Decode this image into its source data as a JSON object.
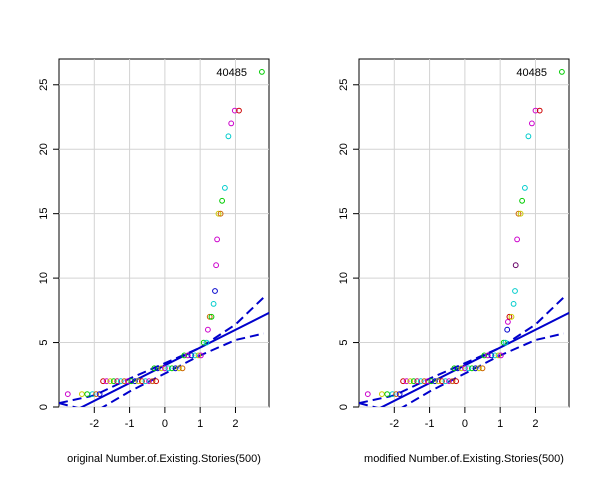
{
  "chart_data": [
    {
      "type": "scatter",
      "subtype": "qq-plot",
      "xlabel": "original Number.of.Existing.Stories(500)",
      "ylabel": "",
      "xlim": [
        -3.0,
        2.95
      ],
      "ylim": [
        0,
        27
      ],
      "xticks": [
        -2,
        -1,
        0,
        1,
        2
      ],
      "yticks": [
        0,
        5,
        10,
        15,
        20,
        25
      ],
      "grid": true,
      "point_label": {
        "text": "40485",
        "x": 2.1,
        "y": 26
      },
      "fit_line": {
        "color": "#0000cc",
        "points": [
          [
            -3.0,
            -0.9
          ],
          [
            2.95,
            7.3
          ]
        ]
      },
      "confidence_upper": {
        "color": "#0000cc",
        "points": [
          [
            -3.0,
            0.3
          ],
          [
            -2.0,
            0.9
          ],
          [
            -1.0,
            2.2
          ],
          [
            0.0,
            3.4
          ],
          [
            1.0,
            4.6
          ],
          [
            2.0,
            6.4
          ],
          [
            2.8,
            8.5
          ]
        ]
      },
      "confidence_lower": {
        "color": "#0000cc",
        "points": [
          [
            -3.0,
            0.3
          ],
          [
            -2.0,
            -0.4
          ],
          [
            -1.0,
            1.2
          ],
          [
            0.0,
            2.6
          ],
          [
            1.0,
            4.0
          ],
          [
            2.0,
            5.2
          ],
          [
            2.8,
            5.7
          ]
        ]
      },
      "points": [
        {
          "x": -2.75,
          "y": 1,
          "c": "#cc00cc"
        },
        {
          "x": -2.35,
          "y": 1,
          "c": "#cccc00"
        },
        {
          "x": -2.2,
          "y": 1,
          "c": "#00cc00"
        },
        {
          "x": -2.05,
          "y": 1,
          "c": "#00cccc"
        },
        {
          "x": -1.95,
          "y": 1,
          "c": "#cc6600"
        },
        {
          "x": -1.85,
          "y": 1,
          "c": "#0000cc"
        },
        {
          "x": -1.75,
          "y": 2,
          "c": "#cc0000"
        },
        {
          "x": -1.65,
          "y": 2,
          "c": "#cc00cc"
        },
        {
          "x": -1.55,
          "y": 2,
          "c": "#cccc00"
        },
        {
          "x": -1.45,
          "y": 2,
          "c": "#00cc00"
        },
        {
          "x": -1.35,
          "y": 2,
          "c": "#cc0066"
        },
        {
          "x": -1.25,
          "y": 2,
          "c": "#00cccc"
        },
        {
          "x": -1.15,
          "y": 2,
          "c": "#cc6600"
        },
        {
          "x": -1.05,
          "y": 2,
          "c": "#cc00cc"
        },
        {
          "x": -0.95,
          "y": 2,
          "c": "#00cc00"
        },
        {
          "x": -0.85,
          "y": 2,
          "c": "#0000cc"
        },
        {
          "x": -0.75,
          "y": 2,
          "c": "#cccc00"
        },
        {
          "x": -0.65,
          "y": 2,
          "c": "#cc0000"
        },
        {
          "x": -0.55,
          "y": 2,
          "c": "#00cccc"
        },
        {
          "x": -0.45,
          "y": 2,
          "c": "#cc00cc"
        },
        {
          "x": -0.35,
          "y": 2,
          "c": "#cc6600"
        },
        {
          "x": -0.25,
          "y": 2,
          "c": "#cc0000"
        },
        {
          "x": -0.3,
          "y": 3,
          "c": "#00cc00"
        },
        {
          "x": -0.2,
          "y": 3,
          "c": "#0000cc"
        },
        {
          "x": -0.1,
          "y": 3,
          "c": "#cccc00"
        },
        {
          "x": 0.0,
          "y": 3,
          "c": "#cc00cc"
        },
        {
          "x": 0.1,
          "y": 3,
          "c": "#00cccc"
        },
        {
          "x": 0.2,
          "y": 3,
          "c": "#00cc00"
        },
        {
          "x": 0.3,
          "y": 3,
          "c": "#0000cc"
        },
        {
          "x": 0.4,
          "y": 3,
          "c": "#cccc00"
        },
        {
          "x": 0.5,
          "y": 3,
          "c": "#cc6600"
        },
        {
          "x": 0.55,
          "y": 4,
          "c": "#00cc00"
        },
        {
          "x": 0.65,
          "y": 4,
          "c": "#cc00cc"
        },
        {
          "x": 0.75,
          "y": 4,
          "c": "#0000cc"
        },
        {
          "x": 0.85,
          "y": 4,
          "c": "#00cccc"
        },
        {
          "x": 0.95,
          "y": 4,
          "c": "#cccc00"
        },
        {
          "x": 1.02,
          "y": 4,
          "c": "#cc00cc"
        },
        {
          "x": 1.1,
          "y": 5,
          "c": "#00cc00"
        },
        {
          "x": 1.18,
          "y": 5,
          "c": "#00cccc"
        },
        {
          "x": 1.22,
          "y": 6,
          "c": "#cc00cc"
        },
        {
          "x": 1.27,
          "y": 7,
          "c": "#cc6600"
        },
        {
          "x": 1.32,
          "y": 7,
          "c": "#00cc00"
        },
        {
          "x": 1.38,
          "y": 8,
          "c": "#00cccc"
        },
        {
          "x": 1.42,
          "y": 9,
          "c": "#0000cc"
        },
        {
          "x": 1.45,
          "y": 11,
          "c": "#cc00cc"
        },
        {
          "x": 1.48,
          "y": 13,
          "c": "#cc00cc"
        },
        {
          "x": 1.52,
          "y": 15,
          "c": "#cccc00"
        },
        {
          "x": 1.58,
          "y": 15,
          "c": "#cc6600"
        },
        {
          "x": 1.62,
          "y": 16,
          "c": "#00cc00"
        },
        {
          "x": 1.7,
          "y": 17,
          "c": "#00cccc"
        },
        {
          "x": 1.8,
          "y": 21,
          "c": "#00cccc"
        },
        {
          "x": 1.88,
          "y": 22,
          "c": "#cc00cc"
        },
        {
          "x": 1.98,
          "y": 23,
          "c": "#cc00cc"
        },
        {
          "x": 2.1,
          "y": 23,
          "c": "#cc0000"
        },
        {
          "x": 2.75,
          "y": 26,
          "c": "#00cc00"
        }
      ]
    },
    {
      "type": "scatter",
      "subtype": "qq-plot",
      "xlabel": "modified Number.of.Existing.Stories(500)",
      "ylabel": "",
      "xlim": [
        -3.0,
        2.95
      ],
      "ylim": [
        0,
        27
      ],
      "xticks": [
        -2,
        -1,
        0,
        1,
        2
      ],
      "yticks": [
        0,
        5,
        10,
        15,
        20,
        25
      ],
      "grid": true,
      "point_label": {
        "text": "40485",
        "x": 2.1,
        "y": 26
      },
      "fit_line": {
        "color": "#0000cc",
        "points": [
          [
            -3.0,
            -0.9
          ],
          [
            2.95,
            7.3
          ]
        ]
      },
      "confidence_upper": {
        "color": "#0000cc",
        "points": [
          [
            -3.0,
            0.3
          ],
          [
            -2.0,
            0.9
          ],
          [
            -1.0,
            2.2
          ],
          [
            0.0,
            3.4
          ],
          [
            1.0,
            4.6
          ],
          [
            2.0,
            6.4
          ],
          [
            2.8,
            8.5
          ]
        ]
      },
      "confidence_lower": {
        "color": "#0000cc",
        "points": [
          [
            -3.0,
            0.3
          ],
          [
            -2.0,
            -0.4
          ],
          [
            -1.0,
            1.2
          ],
          [
            0.0,
            2.6
          ],
          [
            1.0,
            4.0
          ],
          [
            2.0,
            5.2
          ],
          [
            2.8,
            5.7
          ]
        ]
      },
      "points": [
        {
          "x": -2.75,
          "y": 1,
          "c": "#cc00cc"
        },
        {
          "x": -2.35,
          "y": 1,
          "c": "#cccc00"
        },
        {
          "x": -2.2,
          "y": 1,
          "c": "#00cc00"
        },
        {
          "x": -2.05,
          "y": 1,
          "c": "#00cccc"
        },
        {
          "x": -1.95,
          "y": 1,
          "c": "#cc6600"
        },
        {
          "x": -1.85,
          "y": 1,
          "c": "#0000cc"
        },
        {
          "x": -1.75,
          "y": 2,
          "c": "#cc0000"
        },
        {
          "x": -1.65,
          "y": 2,
          "c": "#cc00cc"
        },
        {
          "x": -1.55,
          "y": 2,
          "c": "#cccc00"
        },
        {
          "x": -1.45,
          "y": 2,
          "c": "#00cc00"
        },
        {
          "x": -1.35,
          "y": 2,
          "c": "#cc0066"
        },
        {
          "x": -1.25,
          "y": 2,
          "c": "#00cccc"
        },
        {
          "x": -1.15,
          "y": 2,
          "c": "#cc6600"
        },
        {
          "x": -1.05,
          "y": 2,
          "c": "#cc00cc"
        },
        {
          "x": -0.95,
          "y": 2,
          "c": "#00cc00"
        },
        {
          "x": -0.85,
          "y": 2,
          "c": "#0000cc"
        },
        {
          "x": -0.75,
          "y": 2,
          "c": "#cccc00"
        },
        {
          "x": -0.65,
          "y": 2,
          "c": "#cc0000"
        },
        {
          "x": -0.55,
          "y": 2,
          "c": "#00cccc"
        },
        {
          "x": -0.45,
          "y": 2,
          "c": "#cc00cc"
        },
        {
          "x": -0.35,
          "y": 2,
          "c": "#cc6600"
        },
        {
          "x": -0.25,
          "y": 2,
          "c": "#cc0000"
        },
        {
          "x": -0.3,
          "y": 3,
          "c": "#00cc00"
        },
        {
          "x": -0.2,
          "y": 3,
          "c": "#0000cc"
        },
        {
          "x": -0.1,
          "y": 3,
          "c": "#cccc00"
        },
        {
          "x": 0.0,
          "y": 3,
          "c": "#cc00cc"
        },
        {
          "x": 0.1,
          "y": 3,
          "c": "#00cccc"
        },
        {
          "x": 0.2,
          "y": 3,
          "c": "#00cc00"
        },
        {
          "x": 0.3,
          "y": 3,
          "c": "#0000cc"
        },
        {
          "x": 0.4,
          "y": 3,
          "c": "#cccc00"
        },
        {
          "x": 0.5,
          "y": 3,
          "c": "#cc6600"
        },
        {
          "x": 0.55,
          "y": 4,
          "c": "#00cc00"
        },
        {
          "x": 0.65,
          "y": 4,
          "c": "#cc00cc"
        },
        {
          "x": 0.75,
          "y": 4,
          "c": "#0000cc"
        },
        {
          "x": 0.85,
          "y": 4,
          "c": "#00cccc"
        },
        {
          "x": 0.95,
          "y": 4,
          "c": "#cccc00"
        },
        {
          "x": 1.02,
          "y": 4,
          "c": "#cc00cc"
        },
        {
          "x": 1.1,
          "y": 5,
          "c": "#00cc00"
        },
        {
          "x": 1.15,
          "y": 5,
          "c": "#00cccc"
        },
        {
          "x": 1.2,
          "y": 6,
          "c": "#0000cc"
        },
        {
          "x": 1.22,
          "y": 6.6,
          "c": "#cc00cc"
        },
        {
          "x": 1.26,
          "y": 7,
          "c": "#cc0000"
        },
        {
          "x": 1.32,
          "y": 7,
          "c": "#cccc00"
        },
        {
          "x": 1.38,
          "y": 8,
          "c": "#00cccc"
        },
        {
          "x": 1.42,
          "y": 9,
          "c": "#00cccc"
        },
        {
          "x": 1.44,
          "y": 11,
          "c": "#660066"
        },
        {
          "x": 1.48,
          "y": 13,
          "c": "#cc00cc"
        },
        {
          "x": 1.52,
          "y": 15,
          "c": "#cc6600"
        },
        {
          "x": 1.58,
          "y": 15,
          "c": "#cccc00"
        },
        {
          "x": 1.62,
          "y": 16,
          "c": "#00cc00"
        },
        {
          "x": 1.7,
          "y": 17,
          "c": "#00cccc"
        },
        {
          "x": 1.8,
          "y": 21,
          "c": "#00cccc"
        },
        {
          "x": 1.9,
          "y": 22,
          "c": "#cc00cc"
        },
        {
          "x": 2.0,
          "y": 23,
          "c": "#cc00cc"
        },
        {
          "x": 2.12,
          "y": 23,
          "c": "#cc0000"
        },
        {
          "x": 2.75,
          "y": 26,
          "c": "#00cc00"
        }
      ]
    }
  ]
}
